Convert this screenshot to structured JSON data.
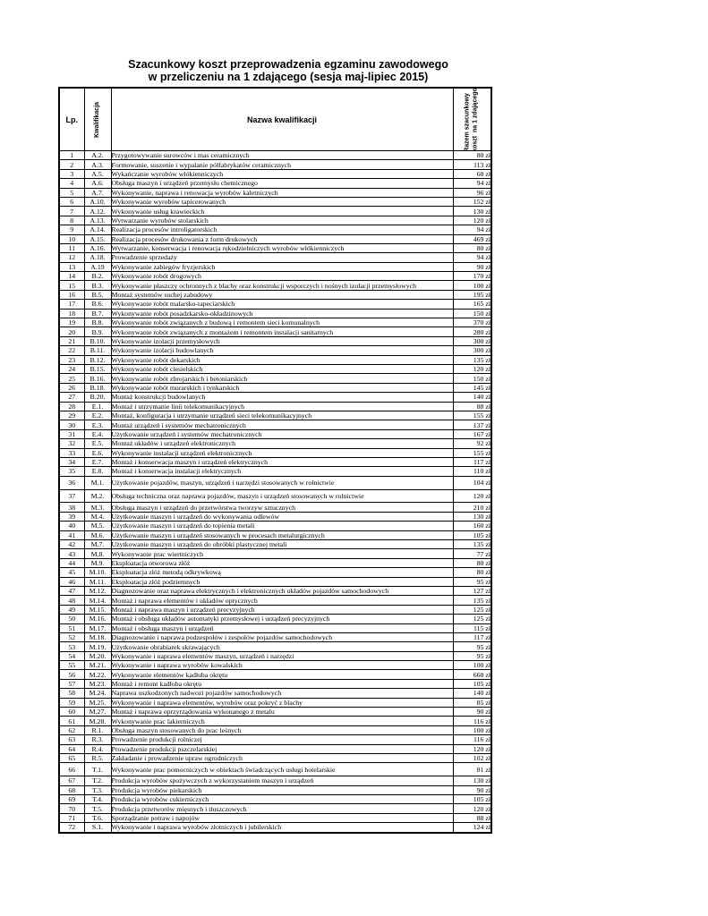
{
  "document": {
    "title_line1": "Szacunkowy koszt przeprowadzenia egzaminu zawodowego",
    "title_line2": "w przeliczeniu na 1 zdającego (sesja maj-lipiec 2015)"
  },
  "table": {
    "headers": {
      "lp": "Lp.",
      "kwalifikacja": "Kwalifikacja",
      "nazwa": "Nazwa kwalifikacji",
      "razem": "Razem szacunkowy\nkoszt  na 1 zdającego"
    },
    "tall_row_numbers": [
      36,
      37,
      66
    ],
    "rows": [
      {
        "lp": "1",
        "kod": "A.2.",
        "nazwa": "Przygotowywanie surowców i mas ceramicznych",
        "koszt": "80 zł"
      },
      {
        "lp": "2",
        "kod": "A.3.",
        "nazwa": "Formowanie, suszenie i wypalanie półfabrykatów ceramicznych",
        "koszt": "113 zł"
      },
      {
        "lp": "3",
        "kod": "A.5.",
        "nazwa": "Wykańczanie wyrobów włókienniczych",
        "koszt": "60 zł"
      },
      {
        "lp": "4",
        "kod": "A.6.",
        "nazwa": "Obsługa maszyn i urządzeń przemysłu chemicznego",
        "koszt": "94 zł"
      },
      {
        "lp": "5",
        "kod": "A.7.",
        "nazwa": "Wykonywanie, naprawa i renowacja wyrobów kaletniczych",
        "koszt": "96 zł"
      },
      {
        "lp": "6",
        "kod": "A.10.",
        "nazwa": "Wykonywanie wyrobów tapicerowanych",
        "koszt": "152 zł"
      },
      {
        "lp": "7",
        "kod": "A.12.",
        "nazwa": "Wykonywanie usług krawieckich",
        "koszt": "130 zł"
      },
      {
        "lp": "8",
        "kod": "A.13.",
        "nazwa": "Wytwarzanie wyrobów stolarskich",
        "koszt": "120 zł"
      },
      {
        "lp": "9",
        "kod": "A.14.",
        "nazwa": "Realizacja procesów introligatorskich",
        "koszt": "94 zł"
      },
      {
        "lp": "10",
        "kod": "A.15.",
        "nazwa": "Realizacja procesów drukowania z form drukowych",
        "koszt": "469 zł"
      },
      {
        "lp": "11",
        "kod": "A.16.",
        "nazwa": "Wytwarzanie, konserwacja i renowacja rękodzielniczych wyrobów włókienniczych",
        "koszt": "80 zł"
      },
      {
        "lp": "12",
        "kod": "A.18.",
        "nazwa": "Prowadzenie sprzedaży",
        "koszt": "94 zł"
      },
      {
        "lp": "13",
        "kod": "A.19",
        "nazwa": "Wykonywanie zabiegów fryzjerskich",
        "koszt": "90 zł"
      },
      {
        "lp": "14",
        "kod": "B.2.",
        "nazwa": "Wykonywanie robót drogowych",
        "koszt": "170 zł"
      },
      {
        "lp": "15",
        "kod": "B.3.",
        "nazwa": "Wykonywanie płaszczy ochronnych z blachy oraz konstrukcji wsporczych i nośnych izolacji przemysłowych",
        "koszt": "100 zł"
      },
      {
        "lp": "16",
        "kod": "B.5.",
        "nazwa": "Montaż systemów suchej zabudowy",
        "koszt": "195 zł"
      },
      {
        "lp": "17",
        "kod": "B.6.",
        "nazwa": "Wykonywanie robót malarsko-tapeciarskich",
        "koszt": "165 zł"
      },
      {
        "lp": "18",
        "kod": "B.7.",
        "nazwa": "Wykonywanie robót posadzkarsko-okładzinowych",
        "koszt": "150 zł"
      },
      {
        "lp": "19",
        "kod": "B.8.",
        "nazwa": "Wykonywanie robót związanych z budową i remontem sieci komunalnych",
        "koszt": "370 zł"
      },
      {
        "lp": "20",
        "kod": "B.9.",
        "nazwa": "Wykonywanie robót związanych z montażem i remontem instalacji sanitarnych",
        "koszt": "280 zł"
      },
      {
        "lp": "21",
        "kod": "B.10.",
        "nazwa": "Wykonywanie izolacji przemysłowych",
        "koszt": "300 zł"
      },
      {
        "lp": "22",
        "kod": "B.11.",
        "nazwa": "Wykonywanie izolacji budowlanych",
        "koszt": "300 zł"
      },
      {
        "lp": "23",
        "kod": "B.12.",
        "nazwa": "Wykonywanie robót dekarskich",
        "koszt": "135 zł"
      },
      {
        "lp": "24",
        "kod": "B.15.",
        "nazwa": "Wykonywanie robót ciesielskich",
        "koszt": "120 zł"
      },
      {
        "lp": "25",
        "kod": "B.16.",
        "nazwa": "Wykonywanie robót zbrojarskich i betoniarskich",
        "koszt": "150 zł"
      },
      {
        "lp": "26",
        "kod": "B.18.",
        "nazwa": "Wykonywanie robót murarskich i tynkarskich",
        "koszt": "145 zł"
      },
      {
        "lp": "27",
        "kod": "B.20.",
        "nazwa": "Montaż konstrukcji budowlanych",
        "koszt": "140 zł"
      },
      {
        "lp": "28",
        "kod": "E.1.",
        "nazwa": "Montaż i utrzymanie linii telekomunikacyjnych",
        "koszt": "88 zł"
      },
      {
        "lp": "29",
        "kod": "E.2.",
        "nazwa": "Montaż, konfiguracja i utrzymanie urządzeń sieci telekomunikacyjnych",
        "koszt": "155 zł"
      },
      {
        "lp": "30",
        "kod": "E.3.",
        "nazwa": "Montaż urządzeń i systemów mechatronicznych",
        "koszt": "137 zł"
      },
      {
        "lp": "31",
        "kod": "E.4.",
        "nazwa": "Użytkowanie urządzeń i systemów mechatronicznych",
        "koszt": "167 zł"
      },
      {
        "lp": "32",
        "kod": "E.5.",
        "nazwa": "Montaż układów i urządzeń elektronicznych",
        "koszt": "92 zł"
      },
      {
        "lp": "33",
        "kod": "E.6.",
        "nazwa": "Wykonywanie instalacji urządzeń elektronicznych",
        "koszt": "155 zł"
      },
      {
        "lp": "34",
        "kod": "E.7.",
        "nazwa": "Montaż i konserwacja maszyn i urządzeń elektrycznych",
        "koszt": "117 zł"
      },
      {
        "lp": "35",
        "kod": "E.8.",
        "nazwa": "Montaż i konserwacja instalacji elektrycznych",
        "koszt": "110 zł"
      },
      {
        "lp": "36",
        "kod": "M.1.",
        "nazwa": "Użytkowanie pojazdów, maszyn, urządzeń i narzędzi stosowanych w rolnictwie",
        "koszt": "104 zł"
      },
      {
        "lp": "37",
        "kod": "M.2.",
        "nazwa": "Obsługa techniczna oraz naprawa pojazdów, maszyn i urządzeń stosowanych w rolnictwie",
        "koszt": "120 zł"
      },
      {
        "lp": "38",
        "kod": "M.3.",
        "nazwa": "Obsługa maszyn i urządzeń do przetwórstwa tworzyw sztucznych",
        "koszt": "210 zł"
      },
      {
        "lp": "39",
        "kod": "M.4.",
        "nazwa": "Użytkowanie maszyn i urządzeń do wykonywania odlewów",
        "koszt": "130 zł"
      },
      {
        "lp": "40",
        "kod": "M.5.",
        "nazwa": "Użytkowanie maszyn i urządzeń do topienia metali",
        "koszt": "160 zł"
      },
      {
        "lp": "41",
        "kod": "M.6.",
        "nazwa": "Użytkowanie maszyn i urządzeń stosowanych w procesach metalurgicznych",
        "koszt": "105 zł"
      },
      {
        "lp": "42",
        "kod": "M.7.",
        "nazwa": "Użytkowanie maszyn i urządzeń do obróbki plastycznej metali",
        "koszt": "135 zł"
      },
      {
        "lp": "43",
        "kod": "M.8.",
        "nazwa": "Wykonywanie prac wiertniczych",
        "koszt": "77 zł"
      },
      {
        "lp": "44",
        "kod": "M.9.",
        "nazwa": "Eksploatacja otworowa złóż",
        "koszt": "80 zł"
      },
      {
        "lp": "45",
        "kod": "M.10.",
        "nazwa": "Eksploatacja złóż metodą odkrywkową",
        "koszt": "80 zł"
      },
      {
        "lp": "46",
        "kod": "M.11.",
        "nazwa": "Eksploatacja złóż podziemnych",
        "koszt": "95 zł"
      },
      {
        "lp": "47",
        "kod": "M.12.",
        "nazwa": "Diagnozowanie oraz naprawa elektrycznych i elektronicznych układów pojazdów samochodowych",
        "koszt": "127 zł"
      },
      {
        "lp": "48",
        "kod": "M.14.",
        "nazwa": "Montaż i naprawa elementów i układów optycznych",
        "koszt": "135 zł"
      },
      {
        "lp": "49",
        "kod": "M.15.",
        "nazwa": "Montaż i naprawa maszyn i urządzeń precyzyjnych",
        "koszt": "125 zł"
      },
      {
        "lp": "50",
        "kod": "M.16.",
        "nazwa": "Montaż i obsługa układów automatyki przemysłowej i urządzeń precyzyjnych",
        "koszt": "125 zł"
      },
      {
        "lp": "51",
        "kod": "M.17.",
        "nazwa": "Montaż i obsługa maszyn i urządzeń",
        "koszt": "115 zł"
      },
      {
        "lp": "52",
        "kod": "M.18.",
        "nazwa": "Diagnozowanie i naprawa podzespołów i zespołów pojazdów samochodowych",
        "koszt": "117 zł"
      },
      {
        "lp": "53",
        "kod": "M.19.",
        "nazwa": "Użytkowanie obrabiarek skrawających",
        "koszt": "95 zł"
      },
      {
        "lp": "54",
        "kod": "M.20.",
        "nazwa": "Wykonywanie i naprawa elementów maszyn, urządzeń i narzędzi",
        "koszt": "95 zł"
      },
      {
        "lp": "55",
        "kod": "M.21.",
        "nazwa": "Wykonywanie i naprawa wyrobów kowalskich",
        "koszt": "100 zł"
      },
      {
        "lp": "56",
        "kod": "M.22.",
        "nazwa": "Wykonywanie elementów kadłuba okrętu",
        "koszt": "660 zł"
      },
      {
        "lp": "57",
        "kod": "M.23.",
        "nazwa": "Montaż i remont kadłuba okrętu",
        "koszt": "105 zł"
      },
      {
        "lp": "58",
        "kod": "M.24.",
        "nazwa": "Naprawa uszkodzonych nadwozi pojazdów samochodowych",
        "koszt": "140 zł"
      },
      {
        "lp": "59",
        "kod": "M.25.",
        "nazwa": "Wykonywanie i naprawa elementów, wyrobów oraz pokryć z blachy",
        "koszt": "85 zł"
      },
      {
        "lp": "60",
        "kod": "M.27.",
        "nazwa": "Montaż i naprawa oprzyrządowania wykonanego z metalu",
        "koszt": "90 zł"
      },
      {
        "lp": "61",
        "kod": "M.28.",
        "nazwa": "Wykonywanie prac lakierniczych",
        "koszt": "116 zł"
      },
      {
        "lp": "62",
        "kod": "R.1.",
        "nazwa": "Obsługa maszyn stosowanych do prac leśnych",
        "koszt": "100 zł"
      },
      {
        "lp": "63",
        "kod": "R.3.",
        "nazwa": "Prowadzenie produkcji rolniczej",
        "koszt": "116 zł"
      },
      {
        "lp": "64",
        "kod": "R.4.",
        "nazwa": "Prowadzenie produkcji pszczelarskiej",
        "koszt": "120 zł"
      },
      {
        "lp": "65",
        "kod": "R.5.",
        "nazwa": "Zakładanie i prowadzenie upraw ogrodniczych",
        "koszt": "102 zł"
      },
      {
        "lp": "66",
        "kod": "T.1.",
        "nazwa": "Wykonywanie prac pomocniczych w obiektach świadczących usługi hotelarskie",
        "koszt": "81 zł"
      },
      {
        "lp": "67",
        "kod": "T.2.",
        "nazwa": "Produkcja wyrobów spożywczych z wykorzystaniem maszyn i urządzeń",
        "koszt": "130 zł"
      },
      {
        "lp": "68",
        "kod": "T.3.",
        "nazwa": "Produkcja wyrobów piekarskich",
        "koszt": "90 zł"
      },
      {
        "lp": "69",
        "kod": "T.4.",
        "nazwa": "Produkcja wyrobów cukierniczych",
        "koszt": "105 zł"
      },
      {
        "lp": "70",
        "kod": "T.5.",
        "nazwa": "Produkcja przetworów mięsnych i tłuszczowych",
        "koszt": "120 zł"
      },
      {
        "lp": "71",
        "kod": "T.6.",
        "nazwa": "Sporządzanie potraw i napojów",
        "koszt": "88 zł"
      },
      {
        "lp": "72",
        "kod": "S.1.",
        "nazwa": "Wykonywanie i naprawa wyrobów złotniczych i jubilerskich",
        "koszt": "124 zł"
      }
    ]
  }
}
